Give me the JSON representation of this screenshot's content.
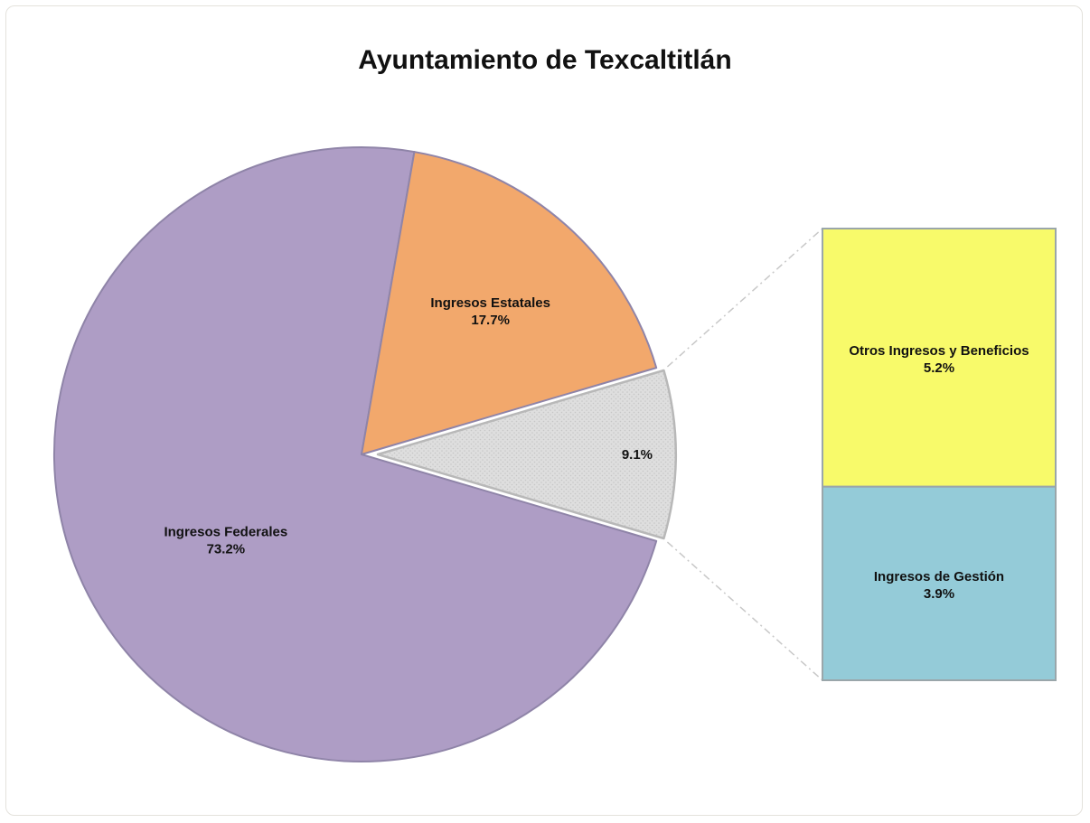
{
  "chart_data": {
    "type": "pie",
    "title": "Ayuntamiento de Texcaltitlán",
    "slices": [
      {
        "label": "Ingresos Federales",
        "value": 73.2,
        "value_label": "73.2%",
        "color": "#ae9dc5"
      },
      {
        "label": "Ingresos Estatales",
        "value": 17.7,
        "value_label": "17.7%",
        "color": "#f2a86c"
      },
      {
        "label": "",
        "value": 9.1,
        "value_label": "9.1%",
        "color": "#d9d9d9",
        "exploded": true
      }
    ],
    "breakout": {
      "source_slice_value": 9.1,
      "segments": [
        {
          "label": "Otros Ingresos y Beneficios",
          "value": 5.2,
          "value_label": "5.2%",
          "color": "#f8fa6a"
        },
        {
          "label": "Ingresos de Gestión",
          "value": 3.9,
          "value_label": "3.9%",
          "color": "#94cbd8"
        }
      ]
    }
  }
}
